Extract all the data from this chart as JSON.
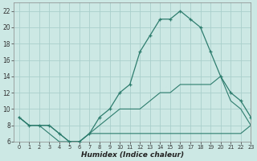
{
  "xlabel": "Humidex (Indice chaleur)",
  "background_color": "#cce8e4",
  "grid_color": "#aacfcc",
  "line_color": "#2e7d6e",
  "x_main": [
    0,
    1,
    2,
    3,
    4,
    5,
    6,
    7,
    8,
    9,
    10,
    11,
    12,
    13,
    14,
    15,
    16,
    17,
    18,
    19,
    20,
    21,
    22,
    23
  ],
  "y_main": [
    9,
    8,
    8,
    8,
    7,
    6,
    6,
    7,
    9,
    10,
    12,
    13,
    17,
    19,
    21,
    21,
    22,
    21,
    20,
    17,
    14,
    12,
    11,
    9
  ],
  "x_line2": [
    0,
    1,
    2,
    3,
    4,
    5,
    6,
    7,
    8,
    9,
    10,
    11,
    12,
    13,
    14,
    15,
    16,
    17,
    18,
    19,
    20,
    21,
    22,
    23
  ],
  "y_line2": [
    9,
    8,
    8,
    7,
    6,
    6,
    6,
    7,
    7,
    7,
    7,
    7,
    7,
    7,
    7,
    7,
    7,
    7,
    7,
    7,
    7,
    7,
    7,
    8
  ],
  "x_line3": [
    0,
    1,
    2,
    3,
    4,
    5,
    6,
    7,
    8,
    9,
    10,
    11,
    12,
    13,
    14,
    15,
    16,
    17,
    18,
    19,
    20,
    21,
    22,
    23
  ],
  "y_line3": [
    9,
    8,
    8,
    8,
    7,
    6,
    6,
    7,
    8,
    9,
    10,
    10,
    10,
    11,
    12,
    12,
    13,
    13,
    13,
    13,
    14,
    11,
    10,
    8
  ],
  "ylim": [
    6,
    23
  ],
  "xlim": [
    -0.5,
    23
  ],
  "yticks": [
    6,
    8,
    10,
    12,
    14,
    16,
    18,
    20,
    22
  ],
  "xticks": [
    0,
    1,
    2,
    3,
    4,
    5,
    6,
    7,
    8,
    9,
    10,
    11,
    12,
    13,
    14,
    15,
    16,
    17,
    18,
    19,
    20,
    21,
    22,
    23
  ]
}
